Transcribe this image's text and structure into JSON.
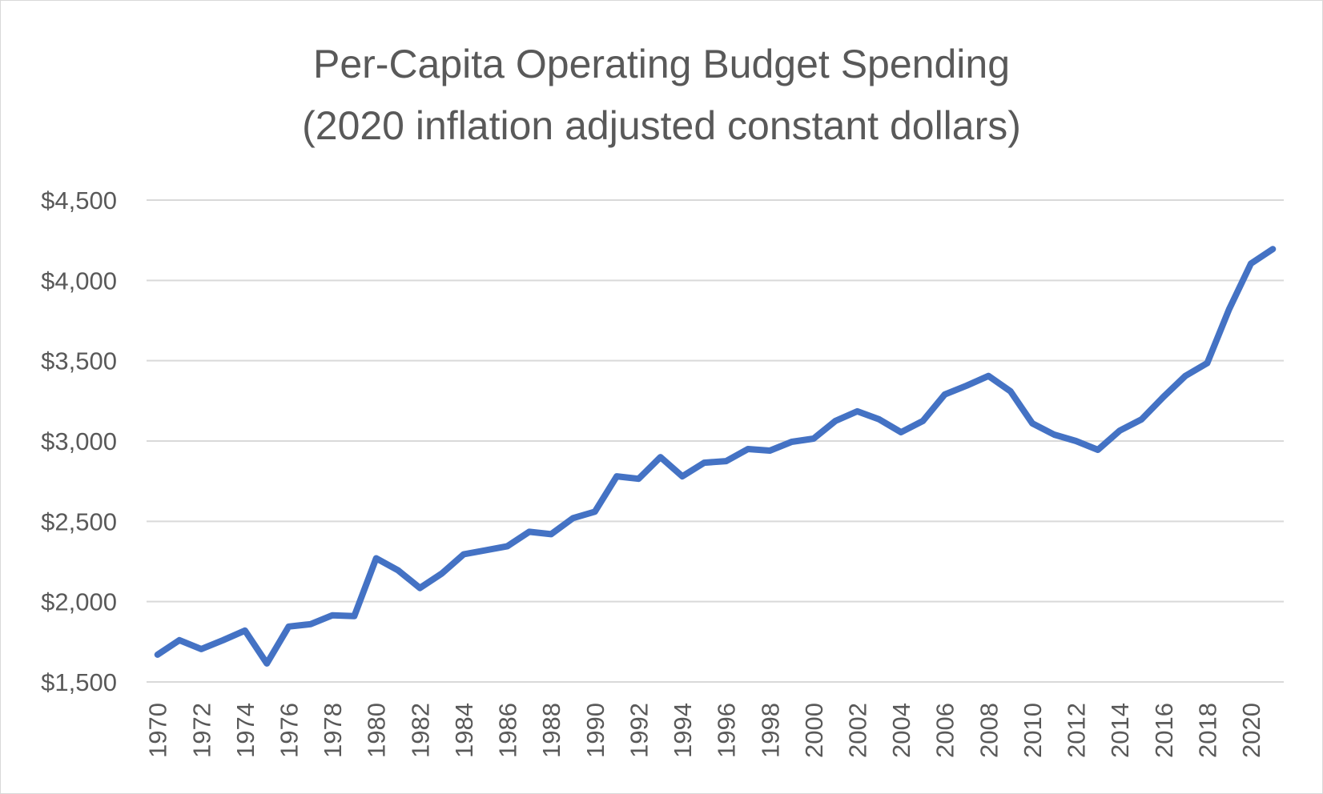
{
  "chart_data": {
    "type": "line",
    "title_lines": [
      "Per-Capita Operating Budget Spending",
      "(2020 inflation adjusted constant dollars)"
    ],
    "xlabel": "",
    "ylabel": "",
    "ylim": [
      1500,
      4500
    ],
    "y_ticks": [
      1500,
      2000,
      2500,
      3000,
      3500,
      4000,
      4500
    ],
    "y_tick_labels": [
      "$1,500",
      "$2,000",
      "$2,500",
      "$3,000",
      "$3,500",
      "$4,000",
      "$4,500"
    ],
    "x_tick_labels": [
      "1970",
      "1972",
      "1974",
      "1976",
      "1978",
      "1980",
      "1982",
      "1984",
      "1986",
      "1988",
      "1990",
      "1992",
      "1994",
      "1996",
      "1998",
      "2000",
      "2002",
      "2004",
      "2006",
      "2008",
      "2010",
      "2012",
      "2014",
      "2016",
      "2018",
      "2020"
    ],
    "grid": true,
    "legend": "none",
    "series": [
      {
        "name": "Per-Capita Operating Budget Spending",
        "color": "#4472c4",
        "x": [
          1970,
          1971,
          1972,
          1973,
          1974,
          1975,
          1976,
          1977,
          1978,
          1979,
          1980,
          1981,
          1982,
          1983,
          1984,
          1985,
          1986,
          1987,
          1988,
          1989,
          1990,
          1991,
          1992,
          1993,
          1994,
          1995,
          1996,
          1997,
          1998,
          1999,
          2000,
          2001,
          2002,
          2003,
          2004,
          2005,
          2006,
          2007,
          2008,
          2009,
          2010,
          2011,
          2012,
          2013,
          2014,
          2015,
          2016,
          2017,
          2018,
          2019,
          2020,
          2021
        ],
        "values": [
          1670,
          1760,
          1705,
          1760,
          1820,
          1615,
          1845,
          1860,
          1915,
          1910,
          2270,
          2195,
          2085,
          2175,
          2295,
          2320,
          2345,
          2435,
          2420,
          2520,
          2560,
          2780,
          2765,
          2900,
          2780,
          2865,
          2875,
          2950,
          2940,
          2995,
          3015,
          3125,
          3185,
          3135,
          3055,
          3125,
          3290,
          3345,
          3405,
          3310,
          3110,
          3040,
          3000,
          2945,
          3065,
          3135,
          3275,
          3405,
          3485,
          3820,
          4105,
          4195
        ]
      }
    ]
  }
}
